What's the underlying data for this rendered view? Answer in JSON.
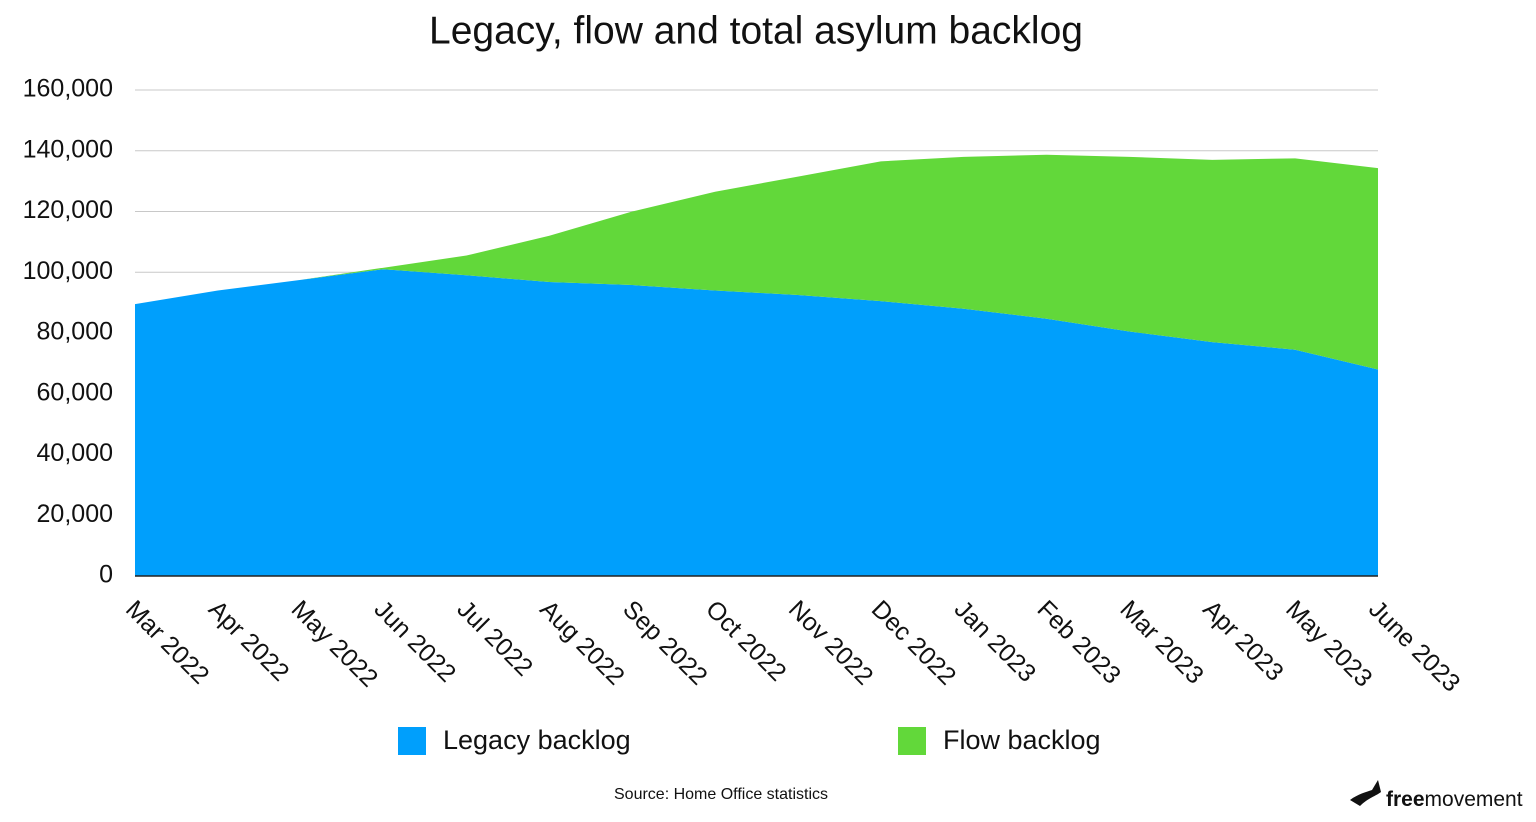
{
  "chart_data": {
    "type": "stacked_area",
    "title": "Legacy, flow and total asylum backlog",
    "categories": [
      "Mar 2022",
      "Apr 2022",
      "May 2022",
      "Jun 2022",
      "Jul 2022",
      "Aug 2022",
      "Sep 2022",
      "Oct 2022",
      "Nov 2022",
      "Dec 2022",
      "Jan 2023",
      "Feb 2023",
      "Mar 2023",
      "Apr 2023",
      "May 2023",
      "June 2023"
    ],
    "series": [
      {
        "name": "Legacy backlog",
        "color": "#009ffc",
        "values": [
          89500,
          94000,
          97500,
          101000,
          99000,
          96800,
          95800,
          94000,
          92500,
          90500,
          88000,
          84700,
          80500,
          77000,
          74500,
          68000
        ]
      },
      {
        "name": "Flow backlog",
        "color": "#62d83a",
        "values": [
          0,
          0,
          0,
          500,
          6500,
          15200,
          24200,
          32500,
          39000,
          46000,
          50000,
          54000,
          57500,
          60000,
          63000,
          66300
        ]
      }
    ],
    "ylim": [
      0,
      160000
    ],
    "yticks": [
      0,
      {
        "value": 20000,
        "label": "20,000"
      },
      {
        "value": 40000,
        "label": "40,000"
      },
      {
        "value": 60000,
        "label": "60,000"
      },
      {
        "value": 80000,
        "label": "80,000"
      },
      {
        "value": 100000,
        "label": "100,000"
      },
      {
        "value": 120000,
        "label": "120,000"
      },
      {
        "value": 140000,
        "label": "140,000"
      },
      {
        "value": 160000,
        "label": "160,000"
      }
    ],
    "grid": true,
    "legend": "bottom",
    "source": "Source: Home Office statistics",
    "logo": {
      "bold": "free",
      "regular": "movement"
    }
  }
}
